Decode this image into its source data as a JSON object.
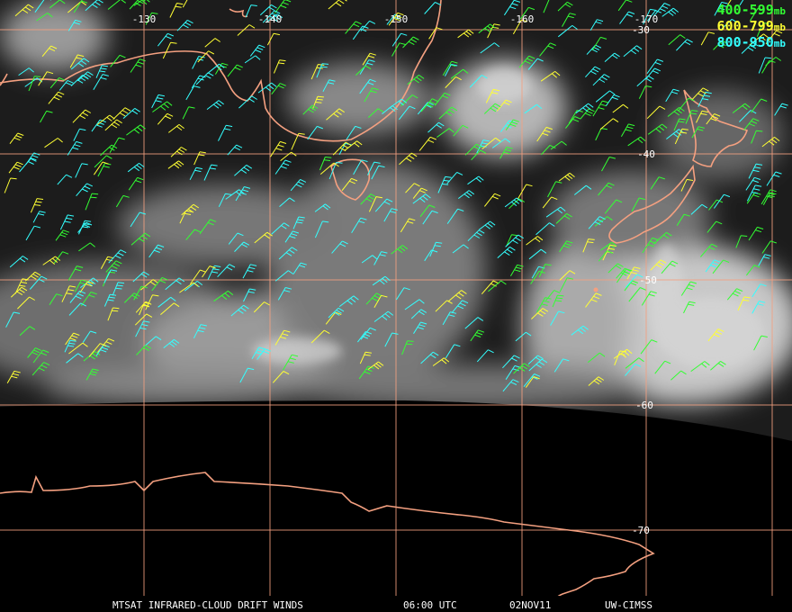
{
  "map": {
    "longitude_labels": [
      "-130",
      "-140",
      "-150",
      "-160",
      "-170"
    ],
    "latitude_labels": [
      "-30",
      "-40",
      "-50",
      "-60",
      "-70"
    ],
    "legend": [
      {
        "range": "400-599",
        "unit": "mb",
        "color": "#33ff33"
      },
      {
        "range": "600-799",
        "unit": "mb",
        "color": "#ffff33"
      },
      {
        "range": "800-950",
        "unit": "mb",
        "color": "#33ffff"
      }
    ],
    "footer": {
      "product": "MTSAT INFRARED-CLOUD DRIFT WINDS",
      "time": "06:00 UTC",
      "date": "02NOV11",
      "source": "UW-CIMSS"
    }
  }
}
